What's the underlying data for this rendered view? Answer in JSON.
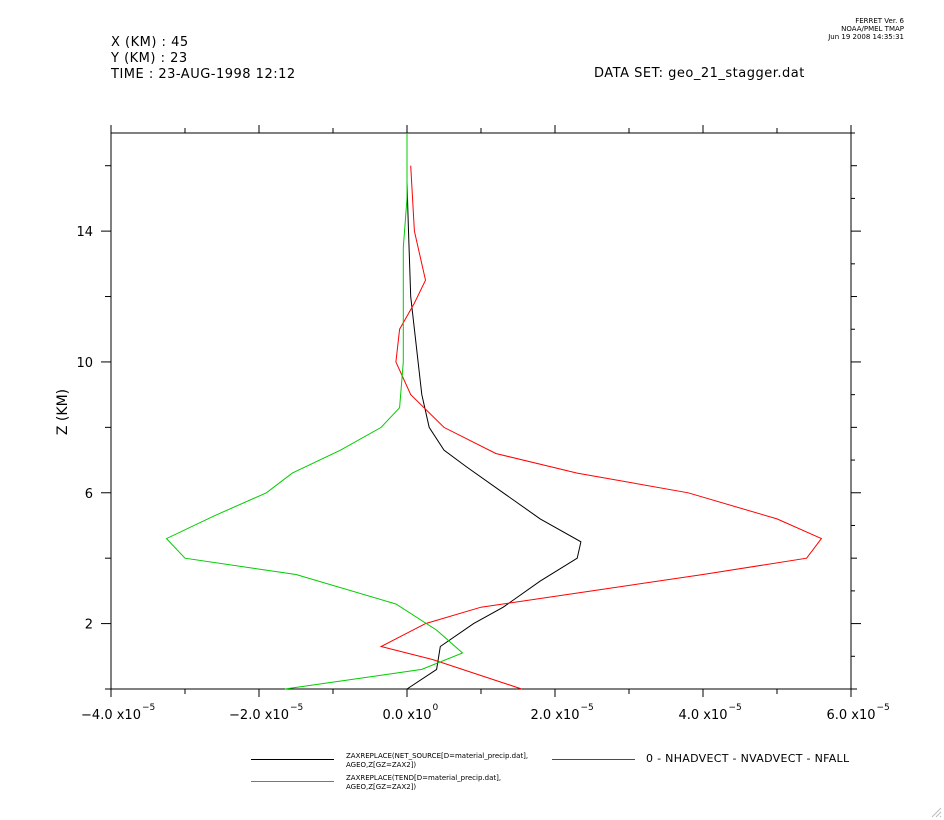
{
  "header": {
    "x_line": "X (KM) : 45",
    "y_line": "Y (KM) : 23",
    "time_line": "TIME : 23-AUG-1998 12:12",
    "dataset": "DATA SET: geo_21_stagger.dat",
    "stamp_1": "FERRET Ver. 6",
    "stamp_2": "NOAA/PMEL TMAP",
    "stamp_3": "Jun 19 2008 14:35:31"
  },
  "chart_data": {
    "type": "line",
    "ylabel": "Z (KM)",
    "xlabel": "",
    "xlim": [
      -4e-05,
      6e-05
    ],
    "ylim": [
      0.0,
      17.0
    ],
    "x_ticks": [
      {
        "value": -4e-05,
        "mant": "−4.0 x10",
        "exp": "−5"
      },
      {
        "value": -2e-05,
        "mant": "−2.0 x10",
        "exp": "−5"
      },
      {
        "value": 0.0,
        "mant": "0.0 x10",
        "exp": "0"
      },
      {
        "value": 2e-05,
        "mant": "2.0 x10",
        "exp": "−5"
      },
      {
        "value": 4e-05,
        "mant": "4.0 x10",
        "exp": "−5"
      },
      {
        "value": 6e-05,
        "mant": "6.0 x10",
        "exp": "−5"
      }
    ],
    "y_ticks": [
      2,
      6,
      10,
      14
    ],
    "series": [
      {
        "name_lines": [
          "ZAXREPLACE(NET_SOURCE[D=material_precip.dat],",
          "AGEO,Z[GZ=ZAX2])"
        ],
        "color": "#000000",
        "points": [
          [
            0.0,
            0.0
          ],
          [
            4e-06,
            0.6
          ],
          [
            4.5e-06,
            1.3
          ],
          [
            9e-06,
            2.0
          ],
          [
            1.3e-05,
            2.5
          ],
          [
            1.8e-05,
            3.3
          ],
          [
            2.3e-05,
            4.0
          ],
          [
            2.35e-05,
            4.5
          ],
          [
            1.8e-05,
            5.2
          ],
          [
            1.3e-05,
            6.0
          ],
          [
            8e-06,
            6.8
          ],
          [
            5e-06,
            7.3
          ],
          [
            3e-06,
            8.0
          ],
          [
            2e-06,
            9.0
          ],
          [
            1.5e-06,
            10.0
          ],
          [
            1e-06,
            11.0
          ],
          [
            5e-07,
            12.0
          ],
          [
            2e-07,
            14.0
          ],
          [
            0.0,
            15.5
          ]
        ]
      },
      {
        "name_lines": [
          "0 - NHADVECT - NVADVECT - NFALL"
        ],
        "color": "#ff0000",
        "points": [
          [
            1.55e-05,
            0.0
          ],
          [
            3.5e-06,
            0.9
          ],
          [
            -3.5e-06,
            1.3
          ],
          [
            2.5e-06,
            2.0
          ],
          [
            1e-05,
            2.5
          ],
          [
            2.5e-05,
            3.0
          ],
          [
            4e-05,
            3.5
          ],
          [
            5.4e-05,
            4.0
          ],
          [
            5.6e-05,
            4.6
          ],
          [
            5e-05,
            5.2
          ],
          [
            3.8e-05,
            6.0
          ],
          [
            2.3e-05,
            6.6
          ],
          [
            1.2e-05,
            7.2
          ],
          [
            5e-06,
            8.0
          ],
          [
            5e-07,
            9.0
          ],
          [
            -1.5e-06,
            10.0
          ],
          [
            -1e-06,
            11.0
          ],
          [
            1e-06,
            11.8
          ],
          [
            2.5e-06,
            12.5
          ],
          [
            1e-06,
            14.0
          ],
          [
            5e-07,
            16.0
          ]
        ]
      },
      {
        "name_lines": [
          "ZAXREPLACE(TEND[D=material_precip.dat],",
          "AGEO,Z[GZ=ZAX2])"
        ],
        "color": "#00cc00",
        "points": [
          [
            -1.65e-05,
            0.0
          ],
          [
            2e-06,
            0.6
          ],
          [
            7.5e-06,
            1.1
          ],
          [
            4e-06,
            1.8
          ],
          [
            -1.5e-06,
            2.6
          ],
          [
            -1.5e-05,
            3.5
          ],
          [
            -3e-05,
            4.0
          ],
          [
            -3.25e-05,
            4.6
          ],
          [
            -2.6e-05,
            5.3
          ],
          [
            -1.9e-05,
            6.0
          ],
          [
            -1.55e-05,
            6.6
          ],
          [
            -9e-06,
            7.3
          ],
          [
            -3.5e-06,
            8.0
          ],
          [
            -1e-06,
            8.6
          ],
          [
            -5e-07,
            10.0
          ],
          [
            -5e-07,
            12.0
          ],
          [
            -5e-07,
            13.5
          ],
          [
            0.0,
            15.0
          ],
          [
            0.0,
            17.0
          ]
        ]
      }
    ]
  }
}
